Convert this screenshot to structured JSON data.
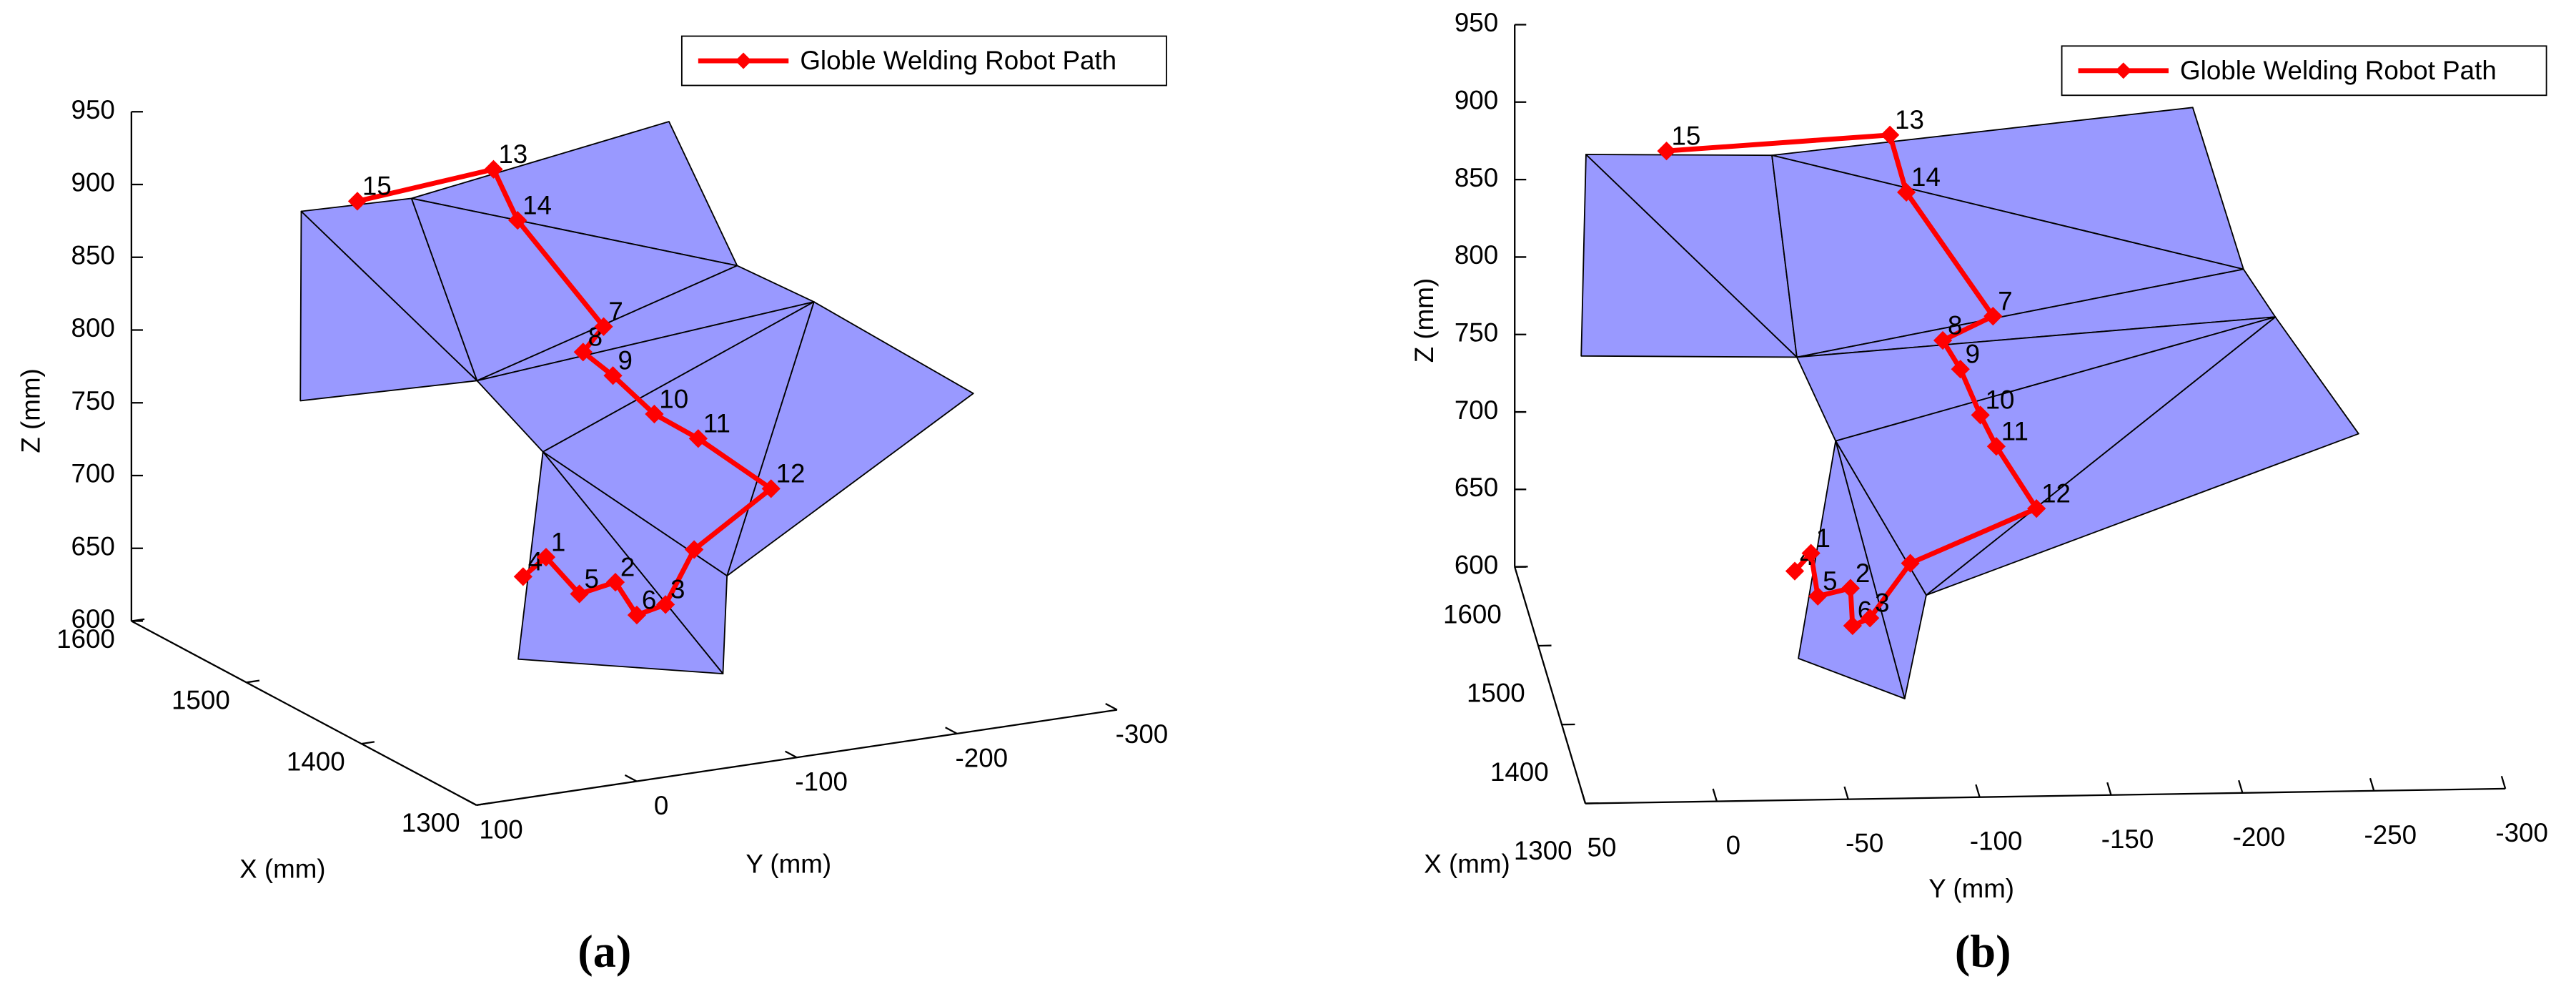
{
  "chart_data": [
    {
      "type": "path3d",
      "caption": "(a)",
      "xlabel": "X (mm)",
      "ylabel": "Y (mm)",
      "zlabel": "Z (mm)",
      "xlim": [
        1300,
        1600
      ],
      "ylim": [
        -300,
        100
      ],
      "zlim": [
        600,
        950
      ],
      "xticks": [
        1300,
        1400,
        1500,
        1600
      ],
      "yticks": [
        100,
        0,
        -100,
        -200,
        -300
      ],
      "zticks": [
        600,
        650,
        700,
        750,
        800,
        850,
        900,
        950
      ],
      "legend": "top right",
      "surface": {
        "color": "#9999ff",
        "x": [
          1554,
          1552,
          1507,
          1557,
          1556,
          1519,
          1462,
          1354,
          1465,
          1337,
          1467,
          1328
        ],
        "y": [
          27,
          29,
          -49,
          -44,
          -204,
          -220,
          -227,
          -249,
          -60,
          -83,
          -46,
          -74
        ],
        "z": [
          889,
          760,
          780,
          885,
          912,
          826,
          824,
          803,
          747,
          712,
          606,
          650
        ],
        "faces": [
          [
            0,
            1,
            2
          ],
          [
            0,
            3,
            2
          ],
          [
            3,
            4,
            5
          ],
          [
            3,
            5,
            2
          ],
          [
            2,
            5,
            6
          ],
          [
            2,
            6,
            8
          ],
          [
            6,
            7,
            9
          ],
          [
            6,
            9,
            8
          ],
          [
            8,
            9,
            11
          ],
          [
            8,
            11,
            10
          ]
        ]
      },
      "series": [
        {
          "name": "Globle Welding Robot Path",
          "color": "#ff0000",
          "x": [
            1460,
            1447,
            1418,
            1402,
            1382,
            1364,
            1360,
            1360,
            1408,
            1442,
            1471,
            1490,
            1500,
            1533,
            1547,
            1547
          ],
          "y": [
            -44,
            -49,
            -49,
            -60,
            -59,
            -64,
            -79,
            -127,
            -116,
            -113,
            -108,
            -103,
            -123,
            -93,
            -88,
            -3
          ],
          "z": [
            666,
            684,
            671,
            684,
            670,
            684,
            721,
            755,
            771,
            774,
            789,
            798,
            808,
            872,
            902,
            894
          ],
          "point_labels": [
            "4",
            "1",
            "5",
            "2",
            "6",
            "3",
            null,
            "12",
            "11",
            "10",
            "9",
            "8",
            "7",
            "14",
            "13",
            "15"
          ]
        }
      ]
    },
    {
      "type": "path3d",
      "caption": "(b)",
      "xlabel": "X (mm)",
      "ylabel": "Y (mm)",
      "zlabel": "Z (mm)",
      "xlim": [
        1300,
        1600
      ],
      "ylim": [
        -300,
        50
      ],
      "zlim": [
        600,
        950
      ],
      "xticks": [
        1300,
        1400,
        1500,
        1600
      ],
      "yticks": [
        50,
        0,
        -50,
        -100,
        -150,
        -200,
        -250,
        -300
      ],
      "zticks": [
        600,
        650,
        700,
        750,
        800,
        850,
        900,
        950
      ],
      "legend": "top right",
      "surface": {
        "color": "#9999ff",
        "x": [
          1554,
          1552,
          1507,
          1557,
          1556,
          1519,
          1462,
          1354,
          1465,
          1337,
          1467,
          1328
        ],
        "y": [
          27,
          29,
          -49,
          -44,
          -204,
          -220,
          -227,
          -249,
          -60,
          -83,
          -46,
          -74
        ],
        "z": [
          889,
          760,
          780,
          885,
          912,
          826,
          824,
          803,
          747,
          712,
          606,
          650
        ],
        "faces": [
          [
            0,
            1,
            2
          ],
          [
            0,
            3,
            2
          ],
          [
            3,
            4,
            5
          ],
          [
            3,
            5,
            2
          ],
          [
            2,
            5,
            6
          ],
          [
            2,
            6,
            8
          ],
          [
            6,
            7,
            9
          ],
          [
            6,
            9,
            8
          ],
          [
            8,
            9,
            11
          ],
          [
            8,
            11,
            10
          ]
        ]
      },
      "series": [
        {
          "name": "Globle Welding Robot Path",
          "color": "#ff0000",
          "x": [
            1460,
            1447,
            1418,
            1402,
            1382,
            1364,
            1360,
            1360,
            1408,
            1442,
            1471,
            1490,
            1500,
            1533,
            1547,
            1547
          ],
          "y": [
            -44,
            -49,
            -49,
            -60,
            -59,
            -64,
            -79,
            -127,
            -116,
            -113,
            -108,
            -103,
            -123,
            -93,
            -88,
            -3
          ],
          "z": [
            666,
            684,
            671,
            684,
            670,
            684,
            721,
            755,
            771,
            774,
            789,
            798,
            808,
            872,
            902,
            894
          ],
          "point_labels": [
            "4",
            "1",
            "5",
            "2",
            "6",
            "3",
            null,
            "12",
            "11",
            "10",
            "9",
            "8",
            "7",
            "14",
            "13",
            "15"
          ]
        }
      ]
    }
  ]
}
